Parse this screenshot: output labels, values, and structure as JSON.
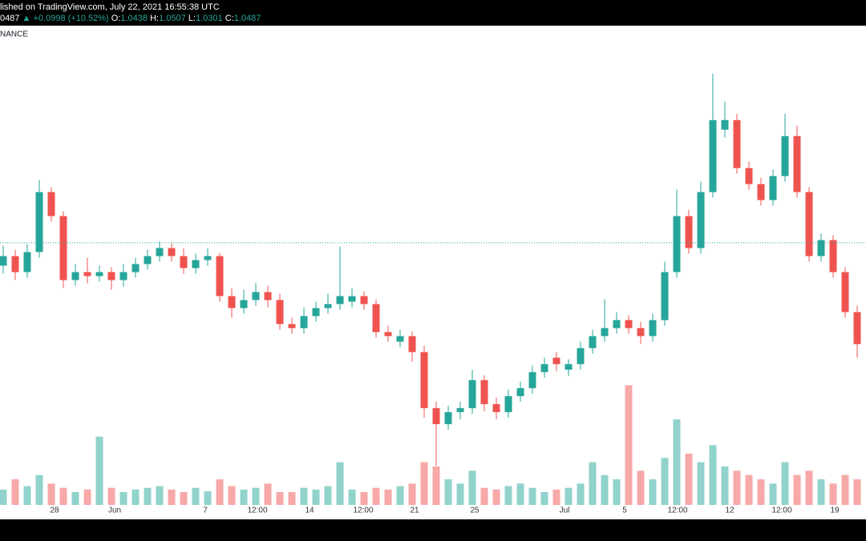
{
  "header": {
    "published": "lished on TradingView.com, July 22, 2021 16:55:38 UTC",
    "price_fragment": "0487",
    "change": "+0.0998 (+10.52%)",
    "ohlc": [
      {
        "label": "O:",
        "value": 1.0438
      },
      {
        "label": "H:",
        "value": 1.0507
      },
      {
        "label": "L:",
        "value": 1.0301
      },
      {
        "label": "C:",
        "value": 1.0487
      }
    ]
  },
  "chart_data": {
    "type": "candlestick",
    "title": "NANCE",
    "up_color": "#26a69a",
    "down_color": "#ef5350",
    "xlim": [
      -0.267,
      71.733
    ],
    "ylim": [
      0.72,
      1.32
    ],
    "volume_ylim": [
      0,
      150
    ],
    "xticks": [
      {
        "value": 4.267,
        "label": "28"
      },
      {
        "value": 9.267,
        "label": "Jun"
      },
      {
        "value": 16.8,
        "label": "7"
      },
      {
        "value": 21.133,
        "label": "12:00"
      },
      {
        "value": 25.467,
        "label": "14"
      },
      {
        "value": 29.933,
        "label": "12:00"
      },
      {
        "value": 34.2,
        "label": "21"
      },
      {
        "value": 39.2,
        "label": "25"
      },
      {
        "value": 46.667,
        "label": "Jul"
      },
      {
        "value": 51.667,
        "label": "5"
      },
      {
        "value": 56.067,
        "label": "12:00"
      },
      {
        "value": 60.4,
        "label": "12"
      },
      {
        "value": 64.733,
        "label": "12:00"
      },
      {
        "value": 69.133,
        "label": "19"
      }
    ],
    "open": [
      1.02,
      1.032,
      1.012,
      1.037,
      1.112,
      1.082,
      1.002,
      1.012,
      1.007,
      1.012,
      1.002,
      1.012,
      1.022,
      1.032,
      1.042,
      1.032,
      1.017,
      1.027,
      1.032,
      0.982,
      0.967,
      0.977,
      0.987,
      0.977,
      0.947,
      0.942,
      0.957,
      0.967,
      0.972,
      0.975,
      0.982,
      0.972,
      0.937,
      0.925,
      0.932,
      0.912,
      0.842,
      0.822,
      0.837,
      0.842,
      0.877,
      0.847,
      0.837,
      0.857,
      0.867,
      0.887,
      0.905,
      0.89,
      0.897,
      0.917,
      0.932,
      0.942,
      0.952,
      0.942,
      0.932,
      0.952,
      1.012,
      1.082,
      1.042,
      1.112,
      1.19,
      1.202,
      1.142,
      1.122,
      1.102,
      1.132,
      1.182,
      1.112,
      1.032,
      1.052,
      1.012,
      0.962
    ],
    "high": [
      1.045,
      1.04,
      1.047,
      1.127,
      1.118,
      1.088,
      1.022,
      1.03,
      1.02,
      1.018,
      1.022,
      1.03,
      1.04,
      1.05,
      1.048,
      1.042,
      1.035,
      1.042,
      1.036,
      0.992,
      0.99,
      0.998,
      0.995,
      0.985,
      0.955,
      0.968,
      0.975,
      0.985,
      1.044,
      0.992,
      0.988,
      0.978,
      0.945,
      0.94,
      0.938,
      0.92,
      0.85,
      0.845,
      0.85,
      0.89,
      0.883,
      0.855,
      0.865,
      0.875,
      0.895,
      0.905,
      0.912,
      0.903,
      0.925,
      0.94,
      0.978,
      0.962,
      0.958,
      0.95,
      0.96,
      1.025,
      1.115,
      1.09,
      1.125,
      1.26,
      1.225,
      1.21,
      1.15,
      1.13,
      1.14,
      1.21,
      1.195,
      1.118,
      1.06,
      1.058,
      1.018,
      0.97
    ],
    "low": [
      1.01,
      1.002,
      1.005,
      1.03,
      1.075,
      0.992,
      0.995,
      0.998,
      1.0,
      0.99,
      0.994,
      1.005,
      1.015,
      1.025,
      1.025,
      1.01,
      1.01,
      1.02,
      0.975,
      0.955,
      0.96,
      0.97,
      0.968,
      0.94,
      0.935,
      0.935,
      0.95,
      0.96,
      0.965,
      0.968,
      0.965,
      0.93,
      0.925,
      0.918,
      0.9,
      0.83,
      0.77,
      0.815,
      0.828,
      0.835,
      0.838,
      0.828,
      0.83,
      0.85,
      0.86,
      0.88,
      0.888,
      0.882,
      0.89,
      0.91,
      0.925,
      0.935,
      0.935,
      0.922,
      0.925,
      0.945,
      1.005,
      1.035,
      1.035,
      1.105,
      1.18,
      1.135,
      1.115,
      1.095,
      1.095,
      1.125,
      1.105,
      1.025,
      1.025,
      1.005,
      0.955,
      0.905
    ],
    "close": [
      1.032,
      1.012,
      1.037,
      1.112,
      1.082,
      1.002,
      1.012,
      1.007,
      1.012,
      1.002,
      1.012,
      1.022,
      1.032,
      1.042,
      1.032,
      1.017,
      1.027,
      1.032,
      0.982,
      0.967,
      0.977,
      0.987,
      0.977,
      0.947,
      0.942,
      0.957,
      0.967,
      0.972,
      0.982,
      0.982,
      0.972,
      0.937,
      0.932,
      0.932,
      0.912,
      0.842,
      0.822,
      0.837,
      0.842,
      0.877,
      0.847,
      0.837,
      0.857,
      0.867,
      0.887,
      0.897,
      0.897,
      0.897,
      0.917,
      0.932,
      0.942,
      0.952,
      0.942,
      0.932,
      0.952,
      1.012,
      1.082,
      1.042,
      1.112,
      1.202,
      1.202,
      1.142,
      1.122,
      1.102,
      1.132,
      1.182,
      1.112,
      1.032,
      1.052,
      1.012,
      0.962,
      0.922
    ],
    "volume": [
      18,
      30,
      22,
      35,
      25,
      20,
      15,
      18,
      80,
      20,
      15,
      18,
      20,
      22,
      18,
      15,
      20,
      16,
      30,
      22,
      18,
      20,
      25,
      15,
      15,
      20,
      18,
      22,
      50,
      18,
      15,
      20,
      18,
      22,
      25,
      50,
      45,
      30,
      25,
      40,
      20,
      18,
      22,
      25,
      20,
      15,
      18,
      20,
      25,
      50,
      35,
      30,
      140,
      40,
      30,
      55,
      100,
      60,
      50,
      70,
      45,
      40,
      35,
      30,
      25,
      50,
      35,
      40,
      30,
      25,
      35,
      30
    ]
  }
}
